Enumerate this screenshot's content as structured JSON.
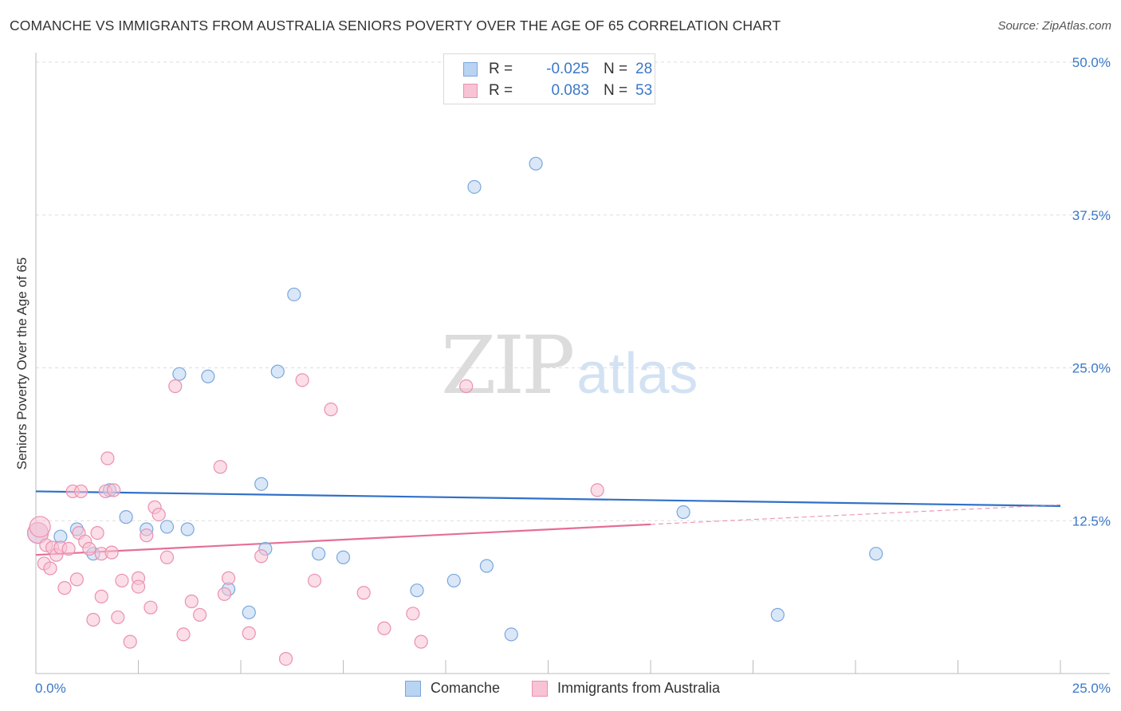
{
  "header": {
    "title": "COMANCHE VS IMMIGRANTS FROM AUSTRALIA SENIORS POVERTY OVER THE AGE OF 65 CORRELATION CHART",
    "source": "Source: ZipAtlas.com"
  },
  "watermark": {
    "zip": "ZIP",
    "atlas": "atlas"
  },
  "stats": {
    "r_label": "R =",
    "n_label": "N =",
    "comanche": {
      "r": "-0.025",
      "n": "28"
    },
    "australia": {
      "r": "0.083",
      "n": "53"
    }
  },
  "legend": {
    "comanche": "Comanche",
    "australia": "Immigrants from Australia"
  },
  "colors": {
    "comanche_fill": "#b9d3f2",
    "comanche_stroke": "#7aa7dc",
    "comanche_line": "#3070c8",
    "australia_fill": "#f8c3d4",
    "australia_stroke": "#eb90b0",
    "australia_line": "#e56e98",
    "tick_text": "#3a78c9",
    "grid": "#dddddd"
  },
  "chart_data": {
    "type": "scatter",
    "title": "COMANCHE VS IMMIGRANTS FROM AUSTRALIA SENIORS POVERTY OVER THE AGE OF 65 CORRELATION CHART",
    "xlabel": "",
    "ylabel": "Seniors Poverty Over the Age of 65",
    "xlim": [
      0,
      25
    ],
    "ylim": [
      0,
      50
    ],
    "x_tick_labels": [
      "0.0%",
      "25.0%"
    ],
    "y_ticks": [
      12.5,
      25.0,
      37.5,
      50.0
    ],
    "y_tick_labels": [
      "12.5%",
      "25.0%",
      "37.5%",
      "50.0%"
    ],
    "grid": true,
    "legend_position": "bottom",
    "series": [
      {
        "name": "Comanche",
        "x": [
          0.05,
          0.6,
          1.0,
          1.4,
          1.8,
          2.2,
          2.7,
          3.2,
          3.5,
          3.7,
          4.2,
          4.7,
          5.2,
          5.5,
          5.6,
          5.9,
          6.3,
          6.9,
          7.5,
          9.3,
          10.2,
          10.7,
          11.0,
          11.6,
          12.2,
          15.8,
          18.1,
          20.5
        ],
        "y": [
          11.5,
          11.2,
          11.8,
          9.8,
          15.0,
          12.8,
          11.8,
          12.0,
          24.5,
          11.8,
          24.3,
          6.9,
          5.0,
          15.5,
          10.2,
          24.7,
          31.0,
          9.8,
          9.5,
          6.8,
          7.6,
          39.8,
          8.8,
          3.2,
          41.7,
          13.2,
          4.8,
          9.8
        ]
      },
      {
        "name": "Immigrants from Australia",
        "x": [
          0.05,
          0.1,
          0.2,
          0.25,
          0.35,
          0.4,
          0.5,
          0.6,
          0.7,
          0.8,
          0.9,
          1.0,
          1.05,
          1.1,
          1.2,
          1.3,
          1.4,
          1.5,
          1.6,
          1.6,
          1.7,
          1.75,
          1.85,
          1.9,
          2.0,
          2.1,
          2.3,
          2.5,
          2.5,
          2.7,
          2.8,
          2.9,
          3.0,
          3.2,
          3.4,
          3.6,
          3.8,
          4.0,
          4.6,
          4.5,
          4.7,
          5.2,
          5.5,
          6.1,
          6.5,
          6.8,
          7.2,
          8.0,
          8.5,
          9.2,
          9.4,
          10.5,
          13.7
        ],
        "y": [
          11.5,
          12.0,
          9.0,
          10.5,
          8.6,
          10.3,
          9.7,
          10.3,
          7.0,
          10.2,
          14.9,
          7.7,
          11.5,
          14.9,
          10.8,
          10.2,
          4.4,
          11.5,
          9.8,
          6.3,
          14.9,
          17.6,
          9.9,
          15.0,
          4.6,
          7.6,
          2.6,
          7.8,
          7.1,
          11.3,
          5.4,
          13.6,
          13.0,
          9.5,
          23.5,
          3.2,
          5.9,
          4.8,
          6.5,
          16.9,
          7.8,
          3.3,
          9.6,
          1.2,
          24.0,
          7.6,
          21.6,
          6.6,
          3.7,
          4.9,
          2.6,
          23.5,
          15.0
        ]
      }
    ],
    "trend_lines": [
      {
        "name": "Comanche",
        "x": [
          0,
          25
        ],
        "y": [
          14.9,
          13.7
        ],
        "style": "solid"
      },
      {
        "name": "Immigrants from Australia",
        "x": [
          0,
          15
        ],
        "y": [
          9.7,
          12.2
        ],
        "style": "solid"
      },
      {
        "name": "Immigrants from Australia (extrapolated)",
        "x": [
          15,
          25
        ],
        "y": [
          12.2,
          13.8
        ],
        "style": "dashed"
      }
    ]
  }
}
